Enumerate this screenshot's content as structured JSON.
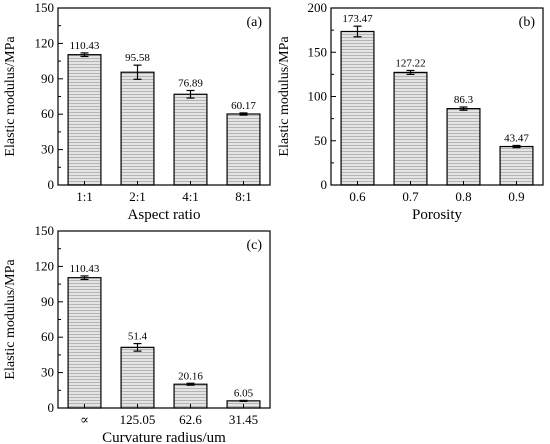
{
  "colors": {
    "bar_fill": "#e4e4e4",
    "bar_hatch": "#b4b4b4",
    "stroke": "#000000",
    "background": "#ffffff"
  },
  "chart_data": [
    {
      "panel": "(a)",
      "type": "bar",
      "categories": [
        "1:1",
        "2:1",
        "4:1",
        "8:1"
      ],
      "values": [
        110.43,
        95.58,
        76.89,
        60.17
      ],
      "errors": [
        1.5,
        6.0,
        3.2,
        0.9
      ],
      "value_labels": [
        "110.43",
        "95.58",
        "76.89",
        "60.17"
      ],
      "xlabel": "Aspect ratio",
      "ylabel": "Elastic modulus/MPa",
      "ylim": [
        0,
        150
      ],
      "yticks": [
        0,
        30,
        60,
        90,
        120,
        150
      ],
      "grid": false,
      "legend": "none"
    },
    {
      "panel": "(b)",
      "type": "bar",
      "categories": [
        "0.6",
        "0.7",
        "0.8",
        "0.9"
      ],
      "values": [
        173.47,
        127.22,
        86.3,
        43.47
      ],
      "errors": [
        6.0,
        2.2,
        1.8,
        1.2
      ],
      "value_labels": [
        "173.47",
        "127.22",
        "86.3",
        "43.47"
      ],
      "xlabel": "Porosity",
      "ylabel": "Elastic modulus/MPa",
      "ylim": [
        0,
        200
      ],
      "yticks": [
        0,
        50,
        100,
        150,
        200
      ],
      "grid": false,
      "legend": "none"
    },
    {
      "panel": "(c)",
      "type": "bar",
      "categories": [
        "∝",
        "125.05",
        "62.6",
        "31.45"
      ],
      "values": [
        110.43,
        51.4,
        20.16,
        6.05
      ],
      "errors": [
        1.5,
        3.2,
        0.8,
        0.4
      ],
      "value_labels": [
        "110.43",
        "51.4",
        "20.16",
        "6.05"
      ],
      "xlabel": "Curvature radius/um",
      "ylabel": "Elastic modulus/MPa",
      "ylim": [
        0,
        150
      ],
      "yticks": [
        0,
        30,
        60,
        90,
        120,
        150
      ],
      "grid": false,
      "legend": "none"
    }
  ]
}
